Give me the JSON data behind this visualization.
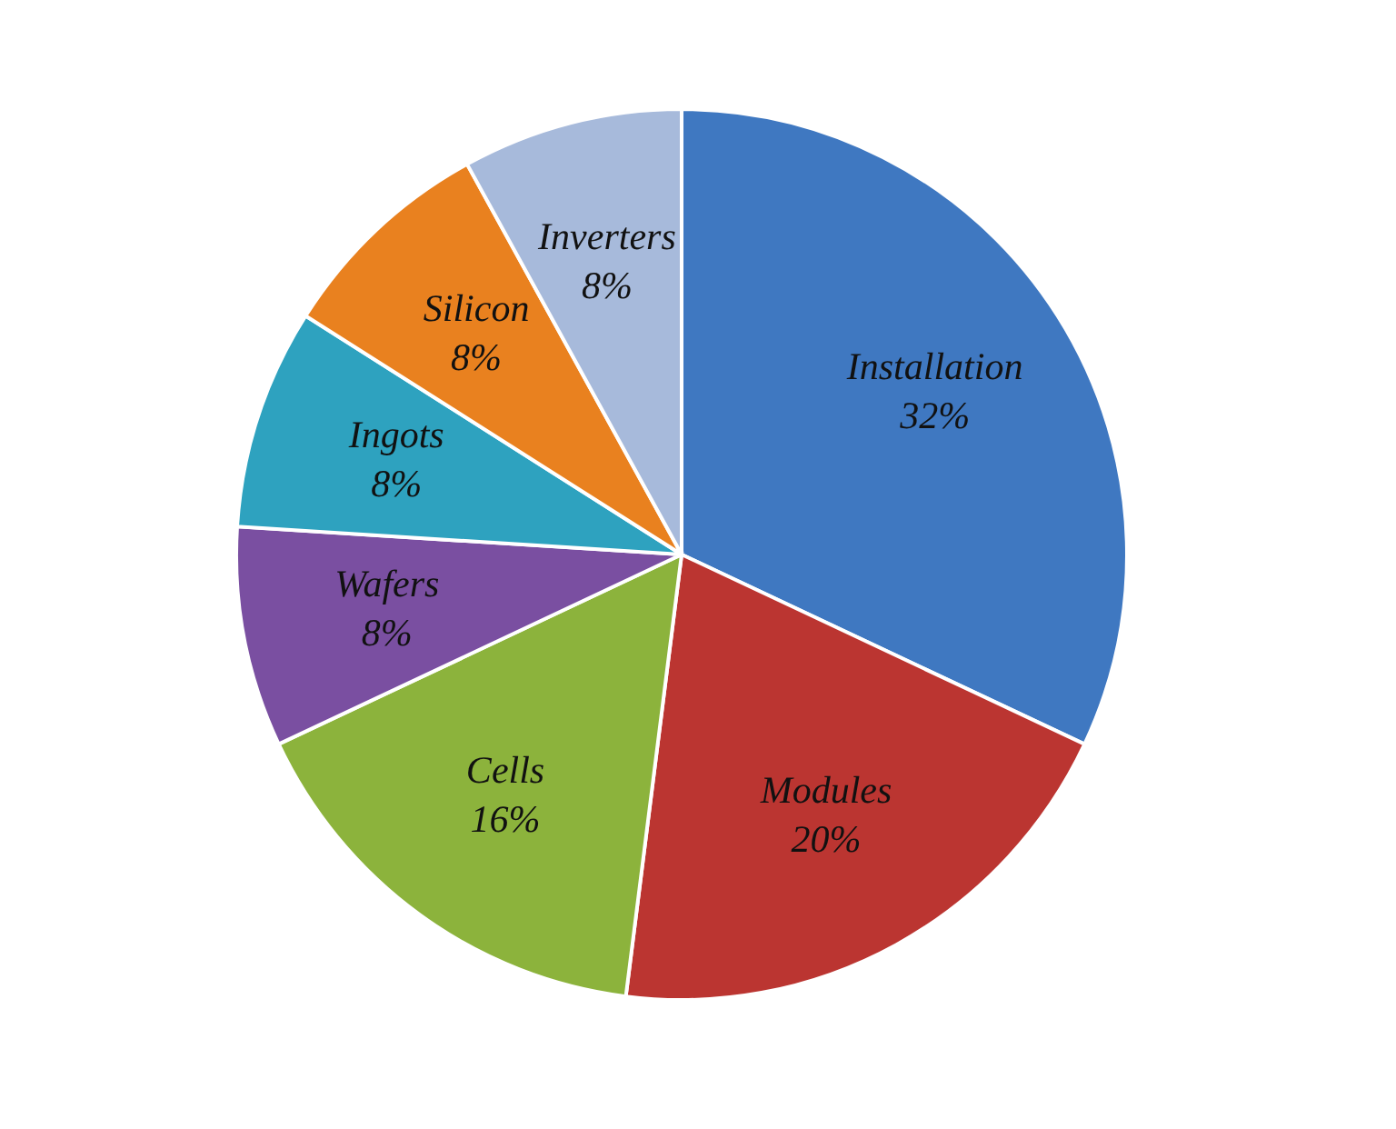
{
  "chart_data": {
    "type": "pie",
    "categories": [
      "Installation",
      "Modules",
      "Cells",
      "Wafers",
      "Ingots",
      "Silicon",
      "Inverters"
    ],
    "values": [
      32,
      20,
      16,
      8,
      8,
      8,
      8
    ],
    "value_labels": [
      "32%",
      "20%",
      "16%",
      "8%",
      "8%",
      "8%",
      "8%"
    ],
    "colors": [
      "#3f78c1",
      "#bb3531",
      "#8cb33c",
      "#7a4fa1",
      "#2ea2bf",
      "#e9811f",
      "#a7badb"
    ],
    "legend": false
  }
}
